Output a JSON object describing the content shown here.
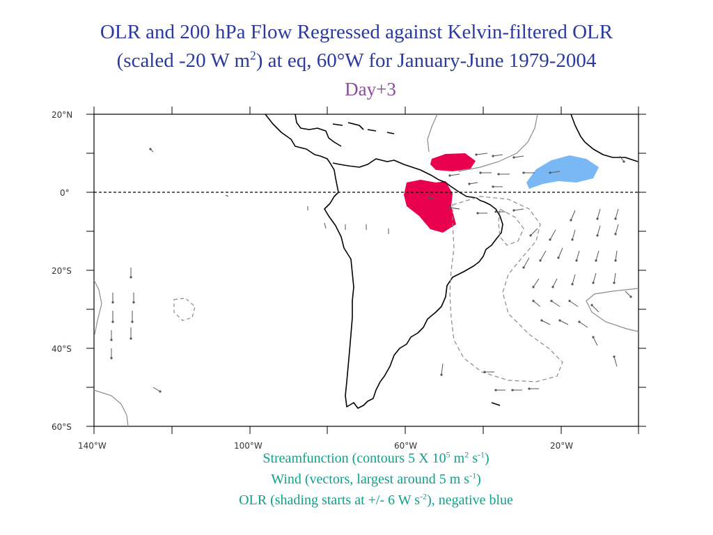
{
  "title": {
    "line1": "OLR and 200 hPa Flow Regressed against Kelvin-filtered OLR",
    "line2_pre": "(scaled -20 W m",
    "line2_sup": "2",
    "line2_post": ") at eq, 60°W for January-June 1979-2004",
    "day": "Day+3"
  },
  "map": {
    "lat_labels": [
      "20°N",
      "0°",
      "20°S",
      "40°S",
      "60°S"
    ],
    "lon_labels": [
      "140°W",
      "100°W",
      "60°W",
      "20°W"
    ],
    "region": "Tropical/South America and adjacent oceans",
    "olr_positive_color": "#e8004e",
    "olr_negative_color": "#7ab8f5",
    "streamfunction_positive_style": "solid gray",
    "streamfunction_negative_style": "dashed gray"
  },
  "caption": {
    "l1_pre": "Streamfunction (contours 5 X 10",
    "l1_sup1": "5",
    "l1_mid": " m",
    "l1_sup2": "2",
    "l1_mid2": " s",
    "l1_sup3": "-1",
    "l1_post": ")",
    "l2_pre": "Wind (vectors, largest around 5 m s",
    "l2_sup": "-1",
    "l2_post": ")",
    "l3_pre": "OLR (shading starts at +/- 6 W s",
    "l3_sup": "-2",
    "l3_post": "), negative blue"
  }
}
